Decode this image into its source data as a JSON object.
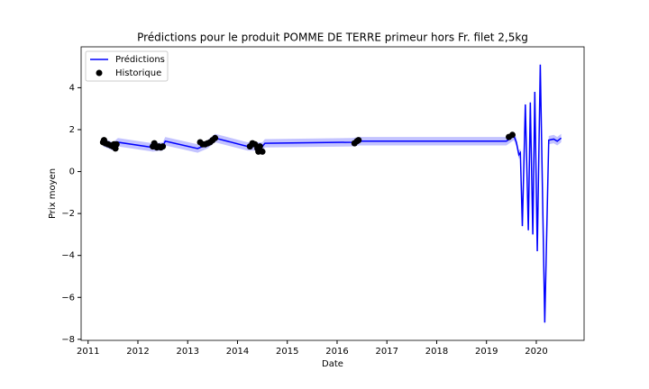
{
  "chart_data": {
    "type": "line",
    "title": "Prédictions pour le produit POMME DE TERRE primeur hors Fr. filet 2,5kg",
    "xlabel": "Date",
    "ylabel": "Prix moyen",
    "xlim": [
      2010.86,
      2020.96
    ],
    "xticks": [
      2011,
      2012,
      2013,
      2014,
      2015,
      2016,
      2017,
      2018,
      2019,
      2020
    ],
    "ylim": [
      -8.05,
      5.95
    ],
    "yticks": [
      {
        "value": -8,
        "label": "−8"
      },
      {
        "value": -6,
        "label": "−6"
      },
      {
        "value": -4,
        "label": "−4"
      },
      {
        "value": -2,
        "label": "−2"
      },
      0,
      2,
      4
    ],
    "legend": "upper left",
    "series": [
      {
        "name": "Prédictions",
        "type": "line",
        "color": "#0000ff",
        "band_color": "#c3c3ff",
        "x": [
          2011.3,
          2011.5,
          2011.6,
          2012.3,
          2012.5,
          2012.55,
          2013.2,
          2013.4,
          2013.55,
          2014.2,
          2014.5,
          2014.55,
          2016.3,
          2016.45,
          2019.4,
          2019.55,
          2019.6,
          2019.65,
          2019.68,
          2019.72,
          2019.78,
          2019.84,
          2019.88,
          2019.93,
          2019.97,
          2020.02,
          2020.08,
          2020.17,
          2020.25,
          2020.35,
          2020.42,
          2020.5
        ],
        "values": [
          1.4,
          1.2,
          1.4,
          1.15,
          1.2,
          1.45,
          1.1,
          1.3,
          1.6,
          1.2,
          1.2,
          1.35,
          1.4,
          1.45,
          1.45,
          1.7,
          1.4,
          0.8,
          0.9,
          -2.6,
          3.2,
          -2.8,
          3.3,
          -3.0,
          3.8,
          -3.8,
          5.1,
          -7.2,
          1.5,
          1.55,
          1.45,
          1.6
        ],
        "lower": [
          1.2,
          1.0,
          1.2,
          0.95,
          1.0,
          1.25,
          0.9,
          1.1,
          1.4,
          1.0,
          1.0,
          1.15,
          1.2,
          1.25,
          1.25,
          1.5,
          1.2,
          0.6,
          0.7,
          -2.8,
          3.0,
          -3.0,
          3.1,
          -3.2,
          3.6,
          -4.0,
          4.9,
          -7.4,
          1.3,
          1.35,
          1.25,
          1.4
        ],
        "upper": [
          1.6,
          1.4,
          1.6,
          1.35,
          1.4,
          1.65,
          1.3,
          1.5,
          1.8,
          1.4,
          1.4,
          1.55,
          1.6,
          1.65,
          1.65,
          1.9,
          1.6,
          1.0,
          1.1,
          -2.4,
          3.4,
          -2.6,
          3.5,
          -2.8,
          4.0,
          -3.6,
          5.3,
          -7.0,
          1.7,
          1.75,
          1.65,
          1.8
        ]
      },
      {
        "name": "Historique",
        "type": "scatter",
        "color": "#000000",
        "x": [
          2011.3,
          2011.32,
          2011.35,
          2011.4,
          2011.45,
          2011.5,
          2011.52,
          2011.55,
          2011.57,
          2012.3,
          2012.33,
          2012.38,
          2012.42,
          2012.46,
          2012.5,
          2013.25,
          2013.3,
          2013.35,
          2013.4,
          2013.45,
          2013.5,
          2013.55,
          2014.25,
          2014.3,
          2014.35,
          2014.4,
          2014.42,
          2014.45,
          2014.5,
          2016.35,
          2016.4,
          2016.43,
          2019.45,
          2019.52
        ],
        "values": [
          1.4,
          1.5,
          1.35,
          1.3,
          1.25,
          1.2,
          1.3,
          1.1,
          1.3,
          1.2,
          1.35,
          1.15,
          1.2,
          1.15,
          1.2,
          1.4,
          1.3,
          1.3,
          1.35,
          1.4,
          1.5,
          1.6,
          1.2,
          1.35,
          1.3,
          1.1,
          0.95,
          1.2,
          0.95,
          1.35,
          1.45,
          1.5,
          1.65,
          1.75
        ]
      }
    ]
  }
}
